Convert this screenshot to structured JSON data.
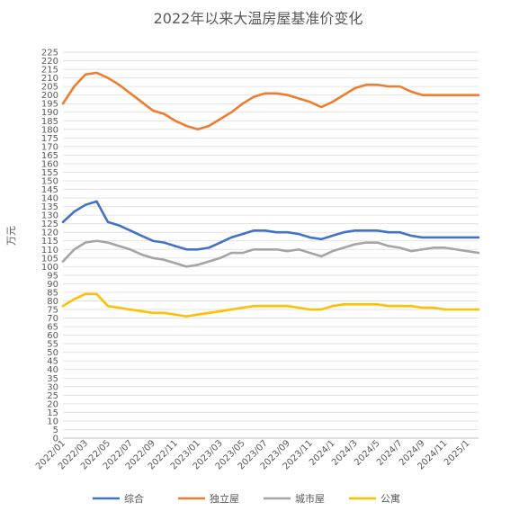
{
  "chart_data": {
    "type": "line",
    "title": "2022年以来大温房屋基准价变化",
    "ylabel": "万元",
    "xlabel": "",
    "ylim": [
      0,
      225
    ],
    "ytick_step": 5,
    "grid": true,
    "legend_position": "bottom",
    "x": [
      "2022/01",
      "2022/02",
      "2022/03",
      "2022/04",
      "2022/05",
      "2022/06",
      "2022/07",
      "2022/08",
      "2022/09",
      "2022/10",
      "2022/11",
      "2022/12",
      "2023/01",
      "2023/02",
      "2023/03",
      "2023/04",
      "2023/05",
      "2023/06",
      "2023/07",
      "2023/08",
      "2023/09",
      "2023/10",
      "2023/11",
      "2023/12",
      "2024/1",
      "2024/2",
      "2024/3",
      "2024/4",
      "2024/5",
      "2024/6",
      "2024/7",
      "2024/8",
      "2024/9",
      "2024/10",
      "2024/11",
      "2024/12",
      "2025/1",
      "2025/2"
    ],
    "x_tick_labels": [
      "2022/01",
      "2022/03",
      "2022/05",
      "2022/07",
      "2022/09",
      "2022/11",
      "2023/01",
      "2023/03",
      "2023/05",
      "2023/07",
      "2023/09",
      "2023/11",
      "2024/1",
      "2024/3",
      "2024/5",
      "2024/7",
      "2024/9",
      "2024/11",
      "2025/1"
    ],
    "series": [
      {
        "name": "综合",
        "color": "#4472C4",
        "values": [
          126,
          132,
          136,
          138,
          126,
          124,
          121,
          118,
          115,
          114,
          112,
          110,
          110,
          111,
          114,
          117,
          119,
          121,
          121,
          120,
          120,
          119,
          117,
          116,
          118,
          120,
          121,
          121,
          121,
          120,
          120,
          118,
          117,
          117,
          117,
          117,
          117,
          117
        ]
      },
      {
        "name": "独立屋",
        "color": "#ED7D31",
        "values": [
          195,
          205,
          212,
          213,
          210,
          206,
          201,
          196,
          191,
          189,
          185,
          182,
          180,
          182,
          186,
          190,
          195,
          199,
          201,
          201,
          200,
          198,
          196,
          193,
          196,
          200,
          204,
          206,
          206,
          205,
          205,
          202,
          200,
          200,
          200,
          200,
          200,
          200
        ]
      },
      {
        "name": "城市屋",
        "color": "#A5A5A5",
        "values": [
          103,
          110,
          114,
          115,
          114,
          112,
          110,
          107,
          105,
          104,
          102,
          100,
          101,
          103,
          105,
          108,
          108,
          110,
          110,
          110,
          109,
          110,
          108,
          106,
          109,
          111,
          113,
          114,
          114,
          112,
          111,
          109,
          110,
          111,
          111,
          110,
          109,
          108
        ]
      },
      {
        "name": "公寓",
        "color": "#FFC000",
        "values": [
          77,
          81,
          84,
          84,
          77,
          76,
          75,
          74,
          73,
          73,
          72,
          71,
          72,
          73,
          74,
          75,
          76,
          77,
          77,
          77,
          77,
          76,
          75,
          75,
          77,
          78,
          78,
          78,
          78,
          77,
          77,
          77,
          76,
          76,
          75,
          75,
          75,
          75
        ]
      }
    ]
  }
}
